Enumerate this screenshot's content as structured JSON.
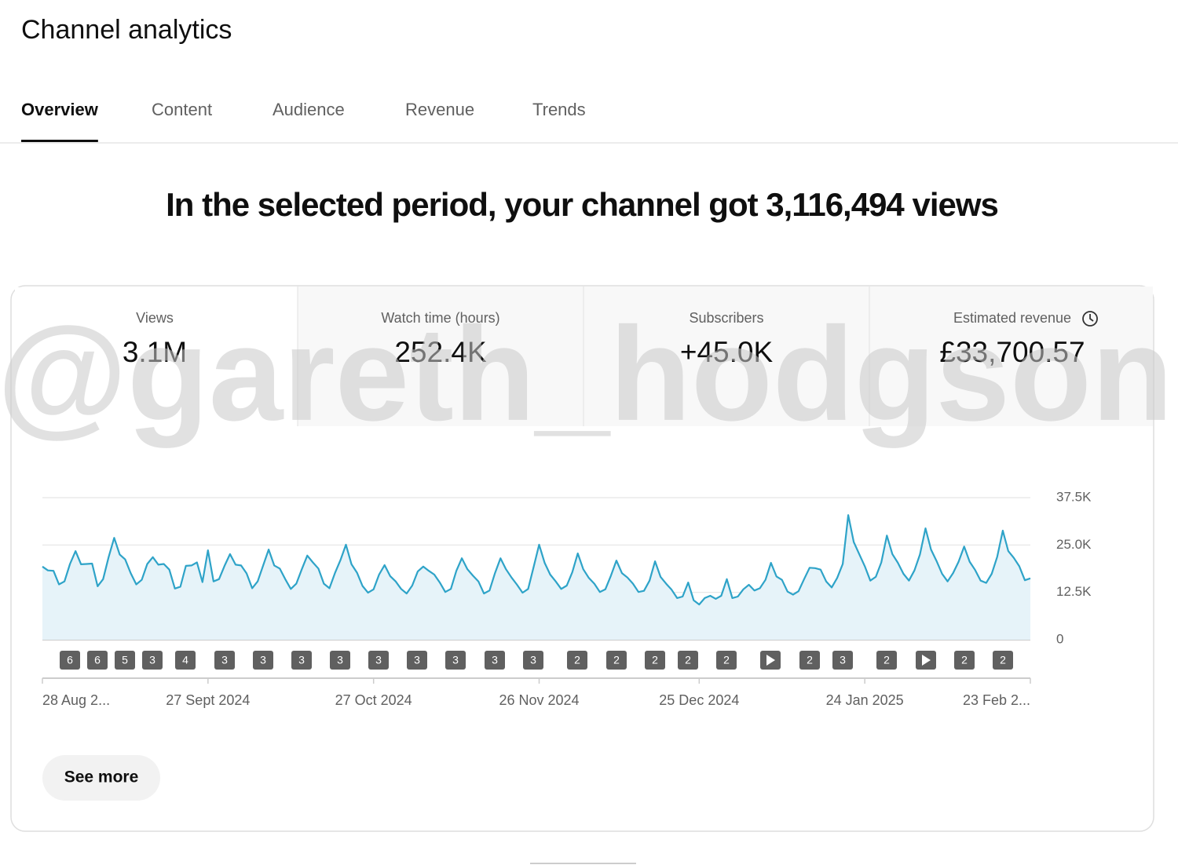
{
  "header": {
    "title": "Channel analytics"
  },
  "tabs": [
    "Overview",
    "Content",
    "Audience",
    "Revenue",
    "Trends"
  ],
  "headline": "In the selected period, your channel got 3,116,494 views",
  "metrics": [
    {
      "label": "Views",
      "value": "3.1M"
    },
    {
      "label": "Watch time (hours)",
      "value": "252.4K"
    },
    {
      "label": "Subscribers",
      "value": "+45.0K"
    },
    {
      "label": "Estimated revenue",
      "value": "£33,700.57"
    }
  ],
  "watermark": "@gareth_hodgson",
  "chart_data": {
    "type": "area",
    "color": "#2ea3c8",
    "fill": "#e6f3f9",
    "grid": true,
    "ylim": [
      0,
      37500
    ],
    "yticks": [
      0,
      {
        "value": 12500,
        "label": "12.5K"
      },
      {
        "value": 25000,
        "label": "25.0K"
      },
      {
        "value": 37500,
        "label": "37.5K"
      }
    ],
    "categories": [
      "28 Aug 2...",
      null,
      null,
      null,
      null,
      null,
      null,
      null,
      null,
      null,
      null,
      null,
      null,
      null,
      null,
      null,
      null,
      null,
      null,
      null,
      null,
      null,
      null,
      null,
      null,
      null,
      null,
      null,
      null,
      null,
      "27 Sept 2024",
      null,
      null,
      null,
      null,
      null,
      null,
      null,
      null,
      null,
      null,
      null,
      null,
      null,
      null,
      null,
      null,
      null,
      null,
      null,
      null,
      null,
      null,
      null,
      null,
      null,
      null,
      null,
      null,
      null,
      "27 Oct 2024",
      null,
      null,
      null,
      null,
      null,
      null,
      null,
      null,
      null,
      null,
      null,
      null,
      null,
      null,
      null,
      null,
      null,
      null,
      null,
      null,
      null,
      null,
      null,
      null,
      null,
      null,
      null,
      null,
      null,
      "26 Nov 2024",
      null,
      null,
      null,
      null,
      null,
      null,
      null,
      null,
      null,
      null,
      null,
      null,
      null,
      null,
      null,
      null,
      null,
      null,
      null,
      null,
      null,
      null,
      null,
      null,
      null,
      null,
      null,
      null,
      "25 Dec 2024",
      null,
      null,
      null,
      null,
      null,
      null,
      null,
      null,
      null,
      null,
      null,
      null,
      null,
      null,
      null,
      null,
      null,
      null,
      null,
      null,
      null,
      null,
      null,
      null,
      null,
      null,
      null,
      null,
      null,
      "24 Jan 2025",
      null,
      null,
      null,
      null,
      null,
      null,
      null,
      null,
      null,
      null,
      null,
      null,
      null,
      null,
      null,
      null,
      null,
      null,
      null,
      null,
      null,
      null,
      null,
      null,
      null,
      null,
      null,
      null,
      null,
      "23 Feb 2..."
    ],
    "values": [
      19300,
      18300,
      18200,
      14600,
      15400,
      20000,
      23400,
      19900,
      20000,
      20100,
      14100,
      16000,
      21800,
      26900,
      22500,
      21200,
      17600,
      14600,
      15800,
      20000,
      21800,
      19800,
      20000,
      18500,
      13500,
      14000,
      19500,
      19600,
      20400,
      15200,
      23600,
      15400,
      16000,
      19500,
      22600,
      19800,
      19600,
      17500,
      13600,
      15400,
      19600,
      23800,
      19600,
      18800,
      16000,
      13400,
      14800,
      18600,
      22200,
      20400,
      18800,
      14800,
      13600,
      17600,
      21000,
      25100,
      19900,
      17700,
      14200,
      12400,
      13300,
      17200,
      19700,
      16800,
      15400,
      13400,
      12200,
      14300,
      18000,
      19300,
      18200,
      17200,
      15100,
      12600,
      13400,
      18200,
      21500,
      18600,
      16900,
      15400,
      12200,
      13000,
      17600,
      21500,
      18600,
      16400,
      14500,
      12400,
      13400,
      19200,
      25100,
      20300,
      17200,
      15400,
      13400,
      14300,
      17800,
      22800,
      18600,
      16300,
      14800,
      12600,
      13300,
      16900,
      20900,
      17600,
      16400,
      14800,
      12600,
      12900,
      15600,
      20700,
      16600,
      14800,
      13200,
      11000,
      11400,
      15100,
      10400,
      9300,
      11000,
      11600,
      10800,
      11600,
      16000,
      11000,
      11400,
      13300,
      14500,
      13000,
      13600,
      15800,
      20300,
      16700,
      15800,
      12700,
      11900,
      12800,
      16000,
      19000,
      18900,
      18500,
      15400,
      13800,
      16300,
      20000,
      32900,
      25800,
      22600,
      19400,
      15600,
      16600,
      20400,
      27500,
      22600,
      20300,
      17400,
      15600,
      18300,
      22500,
      29400,
      23800,
      20800,
      17400,
      15400,
      17600,
      20600,
      24600,
      20600,
      18400,
      15600,
      15000,
      17400,
      21900,
      28800,
      23400,
      21600,
      19400,
      15700,
      16200
    ],
    "annotations": [
      "6",
      "6",
      "5",
      "3",
      "4",
      "3",
      "3",
      "3",
      "3",
      "3",
      "3",
      "3",
      "3",
      "3",
      "2",
      "2",
      "2",
      "2",
      "2",
      null,
      "2",
      "3",
      "2",
      null,
      "2",
      "2"
    ]
  },
  "button": "See more"
}
